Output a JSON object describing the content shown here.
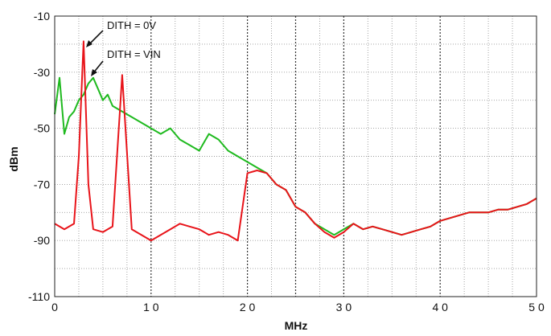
{
  "chart_data": {
    "type": "line",
    "title": "",
    "xlabel": "MHz",
    "ylabel": "dBm",
    "xlim": [
      0,
      50
    ],
    "ylim": [
      -110,
      -10
    ],
    "x_ticks": [
      0,
      10,
      20,
      30,
      40,
      50
    ],
    "x_tick_labels": [
      "0",
      "1 0",
      "2 0",
      "3 0",
      "4 0",
      "5 0"
    ],
    "y_ticks": [
      -10,
      -30,
      -50,
      -70,
      -90,
      -110
    ],
    "y_tick_labels": [
      "-10",
      "-30",
      "-50",
      "-70",
      "-90",
      "-110"
    ],
    "grid": true,
    "legend": "none",
    "series": [
      {
        "name": "DITH = VIN",
        "color": "#1fba1f",
        "x": [
          0,
          0.5,
          1,
          1.5,
          2,
          2.5,
          3,
          3.5,
          4,
          4.5,
          5,
          5.5,
          6,
          7,
          8,
          9,
          10,
          11,
          12,
          13,
          14,
          15,
          16,
          17,
          18,
          19,
          20,
          21,
          22,
          23,
          24,
          25,
          26,
          27,
          28,
          29,
          30,
          31,
          32,
          33,
          34,
          35,
          36,
          37,
          38,
          39,
          40,
          41,
          42,
          43,
          44,
          45,
          46,
          47,
          48,
          49,
          50
        ],
        "y": [
          -45,
          -32,
          -52,
          -46,
          -44,
          -40,
          -38,
          -34,
          -32,
          -36,
          -40,
          -38,
          -42,
          -44,
          -46,
          -48,
          -50,
          -52,
          -50,
          -54,
          -56,
          -58,
          -52,
          -54,
          -58,
          -60,
          -62,
          -64,
          -66,
          -70,
          -72,
          -78,
          -80,
          -84,
          -86,
          -88,
          -86,
          -84,
          -86,
          -85,
          -86,
          -87,
          -88,
          -87,
          -86,
          -85,
          -83,
          -82,
          -81,
          -80,
          -80,
          -80,
          -79,
          -79,
          -78,
          -77,
          -75
        ]
      },
      {
        "name": "DITH = 0V",
        "color": "#e8141a",
        "x": [
          0,
          1,
          2,
          2.5,
          3,
          3.5,
          4,
          5,
          6,
          7,
          8,
          9,
          10,
          11,
          12,
          13,
          14,
          15,
          16,
          17,
          18,
          19,
          20,
          21,
          22,
          23,
          24,
          25,
          26,
          27,
          28,
          29,
          30,
          31,
          32,
          33,
          34,
          35,
          36,
          37,
          38,
          39,
          40,
          41,
          42,
          43,
          44,
          45,
          46,
          47,
          48,
          49,
          50
        ],
        "y": [
          -84,
          -86,
          -84,
          -60,
          -19,
          -70,
          -86,
          -87,
          -85,
          -31,
          -86,
          -88,
          -90,
          -88,
          -86,
          -84,
          -85,
          -86,
          -88,
          -87,
          -88,
          -90,
          -66,
          -65,
          -66,
          -70,
          -72,
          -78,
          -80,
          -84,
          -87,
          -89,
          -87,
          -84,
          -86,
          -85,
          -86,
          -87,
          -88,
          -87,
          -86,
          -85,
          -83,
          -82,
          -81,
          -80,
          -80,
          -80,
          -79,
          -79,
          -78,
          -77,
          -75
        ]
      }
    ],
    "annotations": [
      {
        "text": "DITH = 0V",
        "target_series": "DITH = 0V"
      },
      {
        "text": "DITH = VIN",
        "target_series": "DITH = VIN"
      }
    ]
  }
}
